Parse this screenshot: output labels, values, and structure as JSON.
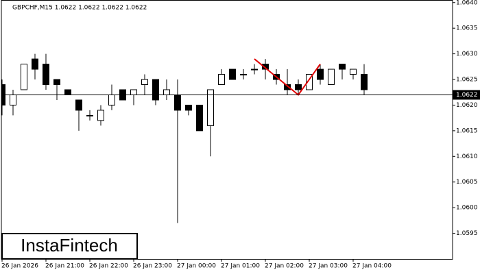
{
  "chart_data": {
    "type": "candlestick",
    "title": "GBPCHF,M15  1.0622 1.0622 1.0622 1.0622",
    "watermark": "InstaFintech",
    "categories": [
      "26 Jan 2026",
      null,
      null,
      null,
      "26 Jan 21:00",
      null,
      null,
      null,
      "26 Jan 22:00",
      null,
      null,
      null,
      "26 Jan 23:00",
      null,
      null,
      null,
      "27 Jan 00:00",
      null,
      null,
      null,
      "27 Jan 01:00",
      null,
      null,
      null,
      "27 Jan 02:00",
      null,
      null,
      null,
      "27 Jan 03:00",
      null,
      null,
      null,
      "27 Jan 04:00",
      null
    ],
    "open": [
      1.0624,
      1.062,
      1.0623,
      1.0629,
      1.0628,
      1.0625,
      1.0623,
      1.0621,
      1.0618,
      1.0617,
      1.062,
      1.0623,
      1.0622,
      1.0624,
      1.0625,
      1.0622,
      1.0622,
      1.062,
      1.062,
      1.0616,
      1.0624,
      1.0627,
      1.0626,
      1.0627,
      1.0628,
      1.0626,
      1.0624,
      1.0624,
      1.0623,
      1.0627,
      1.0624,
      1.0628,
      1.0626,
      1.0626
    ],
    "high": [
      1.0625,
      1.0623,
      1.0628,
      1.063,
      1.063,
      1.0625,
      1.0623,
      1.0621,
      1.0619,
      1.062,
      1.0624,
      1.0623,
      1.0623,
      1.0626,
      1.0625,
      1.0625,
      1.0625,
      1.062,
      1.062,
      1.0623,
      1.0627,
      1.0627,
      1.0627,
      1.0628,
      1.0629,
      1.0627,
      1.0627,
      1.0625,
      1.0626,
      1.0628,
      1.0627,
      1.0628,
      1.0627,
      1.0628
    ],
    "low": [
      1.0618,
      1.0618,
      1.0623,
      1.0625,
      1.0623,
      1.0621,
      1.0622,
      1.0615,
      1.0617,
      1.0616,
      1.0619,
      1.0621,
      1.062,
      1.0622,
      1.062,
      1.0621,
      1.0597,
      1.0618,
      1.0615,
      1.061,
      1.0624,
      1.0625,
      1.0625,
      1.0626,
      1.0625,
      1.0624,
      1.0622,
      1.0622,
      1.0623,
      1.0624,
      1.0624,
      1.0625,
      1.0625,
      1.0622
    ],
    "close": [
      1.062,
      1.0622,
      1.0628,
      1.0627,
      1.0624,
      1.0624,
      1.0622,
      1.0619,
      1.0618,
      1.0619,
      1.0622,
      1.0621,
      1.0623,
      1.0625,
      1.0621,
      1.0623,
      1.0619,
      1.0619,
      1.0615,
      1.0623,
      1.0626,
      1.0625,
      1.0626,
      1.0627,
      1.0627,
      1.0625,
      1.0623,
      1.0623,
      1.0626,
      1.0625,
      1.0627,
      1.0627,
      1.0627,
      1.0623
    ],
    "up_color": "#ffffff",
    "down_color": "#000000",
    "pattern": {
      "color": "#e00000",
      "x": [
        23,
        27,
        29
      ],
      "y": [
        1.0629,
        1.0622,
        1.0628
      ]
    },
    "last_price": {
      "value": 1.0622,
      "label": "1.0622"
    },
    "ylim": [
      1.059,
      1.06405
    ],
    "yticks": [
      1.0595,
      {
        "value": 1.06,
        "label": "1.0600"
      },
      1.0605,
      {
        "value": 1.061,
        "label": "1.0610"
      },
      1.0615,
      {
        "value": 1.062,
        "label": "1.0620"
      },
      1.0625,
      {
        "value": 1.063,
        "label": "1.0630"
      },
      1.0635,
      {
        "value": 1.064,
        "label": "1.0640"
      }
    ]
  }
}
